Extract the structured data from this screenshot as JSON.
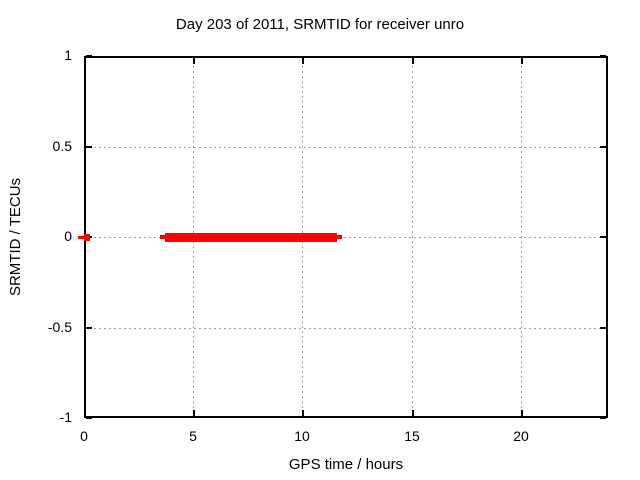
{
  "chart_data": {
    "type": "scatter",
    "title": "Day 203 of 2011, SRMTID for receiver unro",
    "xlabel": "GPS time / hours",
    "ylabel": "SRMTID / TECUs",
    "xlim": [
      0,
      24
    ],
    "ylim": [
      -1,
      1
    ],
    "xticks": [
      0,
      5,
      10,
      15,
      20
    ],
    "xtick_labels": [
      "0",
      "5",
      "10",
      "15",
      "20"
    ],
    "yticks": [
      -1,
      -0.5,
      0,
      0.5,
      1
    ],
    "ytick_labels": [
      "-1",
      "-0.5",
      "0",
      "0.5",
      "1"
    ],
    "grid": true,
    "legend": "none",
    "series": [
      {
        "name": "SRMTID",
        "color": "#ff0000",
        "marker": "filled-square",
        "y": 0,
        "segments": [
          {
            "x0": -0.3,
            "x1": 0.0,
            "y": 0,
            "h": 3
          },
          {
            "x0": 0.0,
            "x1": 0.28,
            "y": 0,
            "h": 7
          },
          {
            "x0": 3.5,
            "x1": 3.7,
            "y": 0,
            "h": 4
          },
          {
            "x0": 3.7,
            "x1": 11.6,
            "y": 0,
            "h": 9
          },
          {
            "x0": 11.6,
            "x1": 11.82,
            "y": 0,
            "h": 4
          }
        ]
      }
    ]
  },
  "colors": {
    "marker": "#ff0000",
    "grid": "#9e9e9e",
    "axis": "#000000",
    "background": "#ffffff"
  }
}
